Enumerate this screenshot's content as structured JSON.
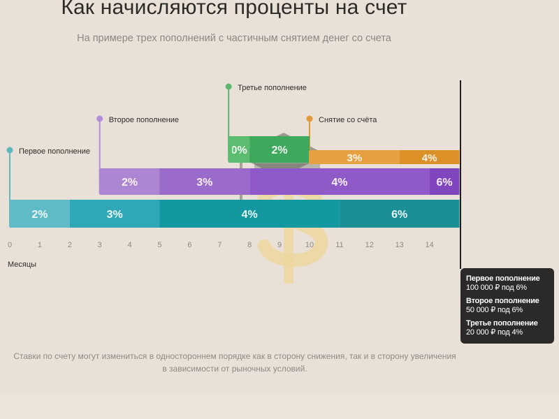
{
  "header": {
    "title": "Как начисляются проценты на счет",
    "subtitle": "На примере трех пополнений с частичным снятием денег со счета"
  },
  "chart_data": {
    "type": "gantt-bar",
    "x_unit_label": "Месяцы",
    "x_ticks": [
      "0",
      "1",
      "2",
      "3",
      "4",
      "5",
      "6",
      "7",
      "8",
      "9",
      "10",
      "11",
      "12",
      "13",
      "14"
    ],
    "x_range": [
      0,
      15
    ],
    "series": [
      {
        "name": "Первое пополнение",
        "start": 0,
        "marker_color": "#5fb7be",
        "segments": [
          {
            "from": 0,
            "to": 2,
            "label": "2%",
            "color": "#5fbcc7"
          },
          {
            "from": 2,
            "to": 5,
            "label": "3%",
            "color": "#2ea8b6"
          },
          {
            "from": 5,
            "to": 11,
            "label": "4%",
            "color": "#13989f"
          },
          {
            "from": 11,
            "to": 15,
            "label": "6%",
            "color": "#1a8f98"
          }
        ]
      },
      {
        "name": "Второе пополнение",
        "start": 3,
        "marker_color": "#b18ed6",
        "segments": [
          {
            "from": 3,
            "to": 5,
            "label": "2%",
            "color": "#ad86d3"
          },
          {
            "from": 5,
            "to": 8,
            "label": "3%",
            "color": "#9b6bcb"
          },
          {
            "from": 8,
            "to": 14,
            "label": "4%",
            "color": "#8f5ac7"
          },
          {
            "from": 14,
            "to": 15,
            "label": "6%",
            "color": "#8146bf"
          }
        ]
      },
      {
        "name": "Третье пополнение",
        "start": 7.3,
        "marker_color": "#59b86e",
        "segments": [
          {
            "from": 7.3,
            "to": 8,
            "label": "0%",
            "color": "#5cbc6f"
          },
          {
            "from": 8,
            "to": 10,
            "label": "2%",
            "color": "#3ea85c"
          }
        ]
      },
      {
        "name": "Снятие со счёта",
        "start": 10,
        "marker_color": "#e39a3a",
        "segments": [
          {
            "from": 10,
            "to": 13,
            "label": "3%",
            "color": "#e6a03f"
          },
          {
            "from": 13,
            "to": 15,
            "label": "4%",
            "color": "#dc9128"
          }
        ]
      }
    ]
  },
  "tooltip": {
    "entries": [
      {
        "name": "Первое пополнение",
        "line": "100 000 ₽ под 6%"
      },
      {
        "name": "Второе пополнение",
        "line": "50 000 ₽ под 6%"
      },
      {
        "name": "Третье пополнение",
        "line": "20 000 ₽ под 4%"
      }
    ]
  },
  "footnote": {
    "line1": "Ставки по счету могут измениться в одностороннем порядке как в сторону снижения, так и в сторону увеличения",
    "line2": "в зависимости от рыночных условий."
  }
}
